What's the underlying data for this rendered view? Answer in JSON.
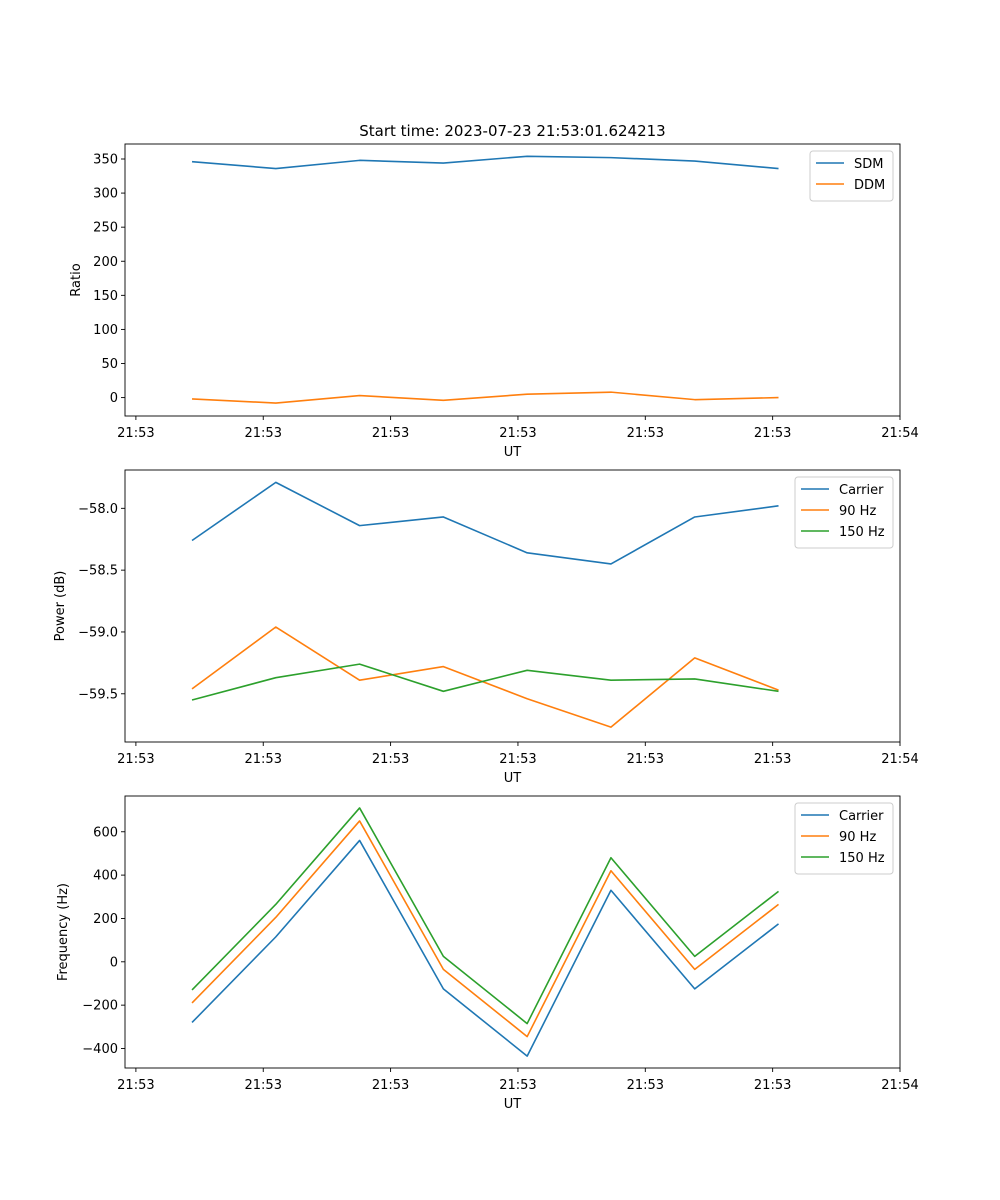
{
  "figure_title": "Start time: 2023-07-23 21:53:01.624213",
  "colors": {
    "blue": "#1f77b4",
    "orange": "#ff7f0e",
    "green": "#2ca02c"
  },
  "chart_data": [
    {
      "type": "line",
      "title": "Start time: 2023-07-23 21:53:01.624213",
      "xlabel": "UT",
      "ylabel": "Ratio",
      "x_tick_labels": [
        "21:53",
        "21:53",
        "21:53",
        "21:53",
        "21:53",
        "21:53",
        "21:54"
      ],
      "x": [
        1,
        2,
        3,
        4,
        5,
        6,
        7,
        8
      ],
      "xlim": [
        0.2,
        9.45
      ],
      "ylim": [
        -27,
        372
      ],
      "y_ticks": [
        0,
        50,
        100,
        150,
        200,
        250,
        300,
        350
      ],
      "y_tick_labels": [
        "0",
        "50",
        "100",
        "150",
        "200",
        "250",
        "300",
        "350"
      ],
      "legend_position": "upper right",
      "series": [
        {
          "name": "SDM",
          "color": "#1f77b4",
          "values": [
            346,
            336,
            348,
            344,
            354,
            352,
            347,
            336
          ]
        },
        {
          "name": "DDM",
          "color": "#ff7f0e",
          "values": [
            -2,
            -8,
            3,
            -4,
            5,
            8,
            -3,
            0
          ]
        }
      ]
    },
    {
      "type": "line",
      "title": "",
      "xlabel": "UT",
      "ylabel": "Power (dB)",
      "x_tick_labels": [
        "21:53",
        "21:53",
        "21:53",
        "21:53",
        "21:53",
        "21:53",
        "21:54"
      ],
      "x": [
        1,
        2,
        3,
        4,
        5,
        6,
        7,
        8
      ],
      "xlim": [
        0.2,
        9.45
      ],
      "ylim": [
        -59.89,
        -57.69
      ],
      "y_ticks": [
        -58.0,
        -58.5,
        -59.0,
        -59.5
      ],
      "y_tick_labels": [
        "−58.0",
        "−58.5",
        "−59.0",
        "−59.5"
      ],
      "legend_position": "upper right",
      "series": [
        {
          "name": "Carrier",
          "color": "#1f77b4",
          "values": [
            -58.26,
            -57.79,
            -58.14,
            -58.07,
            -58.36,
            -58.45,
            -58.07,
            -57.98
          ]
        },
        {
          "name": "90 Hz",
          "color": "#ff7f0e",
          "values": [
            -59.46,
            -58.96,
            -59.39,
            -59.28,
            -59.54,
            -59.77,
            -59.21,
            -59.47
          ]
        },
        {
          "name": "150 Hz",
          "color": "#2ca02c",
          "values": [
            -59.55,
            -59.37,
            -59.26,
            -59.48,
            -59.31,
            -59.39,
            -59.38,
            -59.48
          ]
        }
      ]
    },
    {
      "type": "line",
      "title": "",
      "xlabel": "UT",
      "ylabel": "Frequency (Hz)",
      "x_tick_labels": [
        "21:53",
        "21:53",
        "21:53",
        "21:53",
        "21:53",
        "21:53",
        "21:54"
      ],
      "x": [
        1,
        2,
        3,
        4,
        5,
        6,
        7,
        8
      ],
      "xlim": [
        0.2,
        9.45
      ],
      "ylim": [
        -490,
        765
      ],
      "y_ticks": [
        -400,
        -200,
        0,
        200,
        400,
        600
      ],
      "y_tick_labels": [
        "−400",
        "−200",
        "0",
        "200",
        "400",
        "600"
      ],
      "legend_position": "upper right",
      "series": [
        {
          "name": "Carrier",
          "color": "#1f77b4",
          "values": [
            -280,
            115,
            560,
            -125,
            -435,
            330,
            -125,
            175
          ]
        },
        {
          "name": "90 Hz",
          "color": "#ff7f0e",
          "values": [
            -190,
            205,
            650,
            -35,
            -345,
            420,
            -35,
            265
          ]
        },
        {
          "name": "150 Hz",
          "color": "#2ca02c",
          "values": [
            -130,
            265,
            710,
            25,
            -285,
            480,
            25,
            325
          ]
        }
      ]
    }
  ]
}
